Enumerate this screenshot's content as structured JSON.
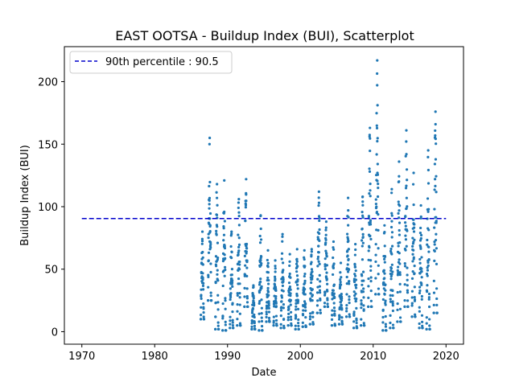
{
  "chart_data": {
    "type": "scatter",
    "title": "EAST OOTSA - Buildup Index (BUI), Scatterplot",
    "xlabel": "Date",
    "ylabel": "Buildup Index (BUI)",
    "xlim": [
      1967.6,
      2022.4
    ],
    "ylim": [
      -10,
      228
    ],
    "x_ticks": [
      1970,
      1980,
      1990,
      2000,
      2010,
      2020
    ],
    "y_ticks": [
      0,
      50,
      100,
      150,
      200
    ],
    "grid": false,
    "legend_position": "top-left",
    "colors": {
      "points": "#1f77b4",
      "threshold": "#0000cc"
    },
    "reference_line": {
      "label": "90th percentile : 90.5",
      "value": 90.5,
      "x_range": [
        1970,
        2020
      ],
      "style": "dashed"
    },
    "season_peaks": [
      {
        "year": 1986,
        "min": 10,
        "max": 80
      },
      {
        "year": 1987,
        "min": 25,
        "max": 155
      },
      {
        "year": 1988,
        "min": 2,
        "max": 118
      },
      {
        "year": 1989,
        "min": 1,
        "max": 121
      },
      {
        "year": 1990,
        "min": 3,
        "max": 80
      },
      {
        "year": 1991,
        "min": 5,
        "max": 106
      },
      {
        "year": 1992,
        "min": 20,
        "max": 122
      },
      {
        "year": 1993,
        "min": 2,
        "max": 37
      },
      {
        "year": 1994,
        "min": 1,
        "max": 93
      },
      {
        "year": 1995,
        "min": 8,
        "max": 65
      },
      {
        "year": 1996,
        "min": 5,
        "max": 57
      },
      {
        "year": 1997,
        "min": 3,
        "max": 78
      },
      {
        "year": 1998,
        "min": 5,
        "max": 62
      },
      {
        "year": 1999,
        "min": 2,
        "max": 66
      },
      {
        "year": 2000,
        "min": 4,
        "max": 65
      },
      {
        "year": 2001,
        "min": 6,
        "max": 66
      },
      {
        "year": 2002,
        "min": 15,
        "max": 112
      },
      {
        "year": 2003,
        "min": 20,
        "max": 88
      },
      {
        "year": 2004,
        "min": 5,
        "max": 72
      },
      {
        "year": 2005,
        "min": 6,
        "max": 55
      },
      {
        "year": 2006,
        "min": 12,
        "max": 107
      },
      {
        "year": 2007,
        "min": 3,
        "max": 70
      },
      {
        "year": 2008,
        "min": 5,
        "max": 108
      },
      {
        "year": 2009,
        "min": 20,
        "max": 163
      },
      {
        "year": 2010,
        "min": 30,
        "max": 217
      },
      {
        "year": 2011,
        "min": 1,
        "max": 85
      },
      {
        "year": 2012,
        "min": 3,
        "max": 114
      },
      {
        "year": 2013,
        "min": 8,
        "max": 136
      },
      {
        "year": 2014,
        "min": 20,
        "max": 161
      },
      {
        "year": 2015,
        "min": 12,
        "max": 127
      },
      {
        "year": 2016,
        "min": 3,
        "max": 101
      },
      {
        "year": 2017,
        "min": 2,
        "max": 145
      },
      {
        "year": 2018,
        "min": 15,
        "max": 176
      }
    ]
  }
}
